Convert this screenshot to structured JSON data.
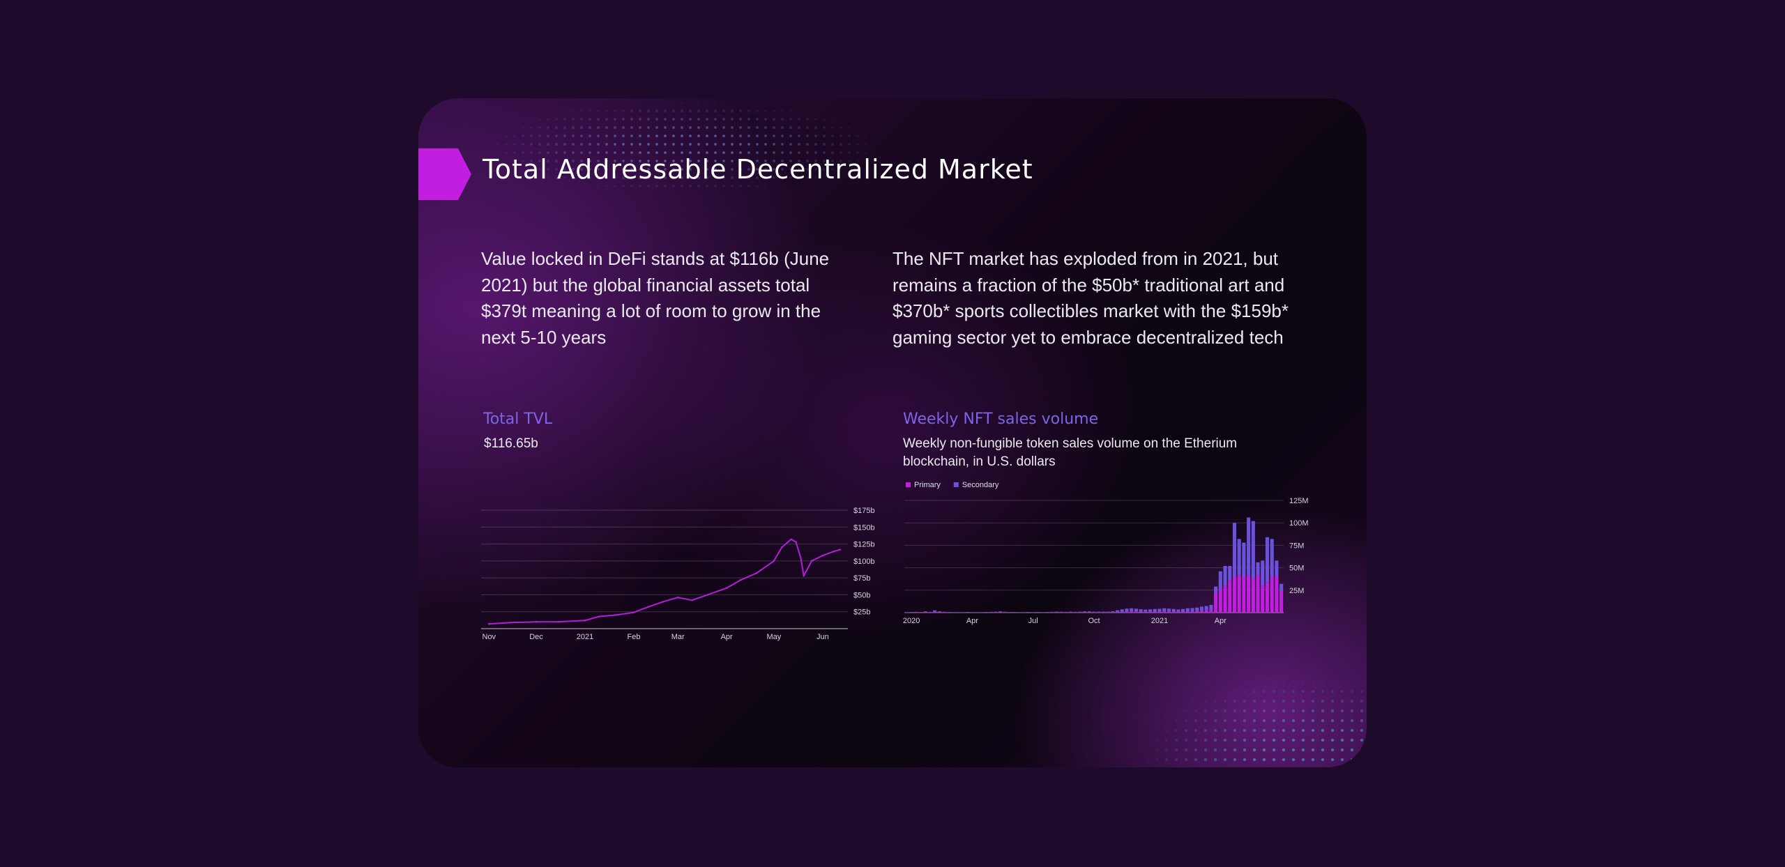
{
  "page": {
    "title": "Total Addressable Decentralized Market",
    "intro_left": "Value locked in DeFi stands at $116b (June 2021) but the global financial assets total $379t meaning a lot of room to grow in the next 5-10 years",
    "intro_right": "The NFT market has exploded from in 2021, but remains a fraction of the $50b* traditional art and $370b* sports collectibles market with the $159b* gaming sector yet to embrace decentralized tech",
    "accent_color": "#c21ee0",
    "chart_title_color": "#7b66e6"
  },
  "tvl": {
    "title": "Total TVL",
    "value": "$116.65b"
  },
  "nft": {
    "title": "Weekly NFT sales volume",
    "subtitle": "Weekly non-fungible token sales volume on the Etherium blockchain, in U.S. dollars"
  },
  "chart_data": [
    {
      "type": "line",
      "series": [
        {
          "color": "#b21fd6",
          "x": [
            "2020-11-01",
            "2020-11-15",
            "2020-12-01",
            "2020-12-15",
            "2021-01-01",
            "2021-01-10",
            "2021-01-20",
            "2021-02-01",
            "2021-02-10",
            "2021-02-20",
            "2021-03-01",
            "2021-03-10",
            "2021-03-20",
            "2021-04-01",
            "2021-04-10",
            "2021-04-20",
            "2021-05-01",
            "2021-05-06",
            "2021-05-12",
            "2021-05-15",
            "2021-05-18",
            "2021-05-20",
            "2021-05-25",
            "2021-06-01",
            "2021-06-08",
            "2021-06-12"
          ],
          "values": [
            7,
            9,
            10,
            10,
            12,
            18,
            20,
            24,
            32,
            40,
            46,
            42,
            50,
            60,
            72,
            82,
            100,
            120,
            132,
            128,
            105,
            78,
            100,
            108,
            114,
            116.65
          ]
        }
      ],
      "x_ticks": [
        "Nov",
        "Dec",
        "2021",
        "Feb",
        "Mar",
        "Apr",
        "May",
        "Jun"
      ],
      "x_tick_dates": [
        "2020-11-01",
        "2020-12-01",
        "2021-01-01",
        "2021-02-01",
        "2021-03-01",
        "2021-04-01",
        "2021-05-01",
        "2021-06-01"
      ],
      "xlim": [
        "2020-10-27",
        "2021-06-17"
      ],
      "y_ticks": [
        "$25b",
        "$50b",
        "$75b",
        "$100b",
        "$125b",
        "$150b",
        "$175b"
      ],
      "y_tick_values": [
        25,
        50,
        75,
        100,
        125,
        150,
        175
      ],
      "ylim": [
        0,
        175
      ],
      "ylabel_side": "right",
      "grid": true
    },
    {
      "type": "bar",
      "stacked": true,
      "legend_position": "top-left",
      "series": [
        {
          "name": "Primary",
          "color": "#c21ee0",
          "values": [
            0.3,
            0.4,
            0.5,
            0.4,
            0.8,
            0.5,
            1.5,
            0.8,
            0.6,
            0.4,
            0.3,
            0.3,
            0.3,
            0.4,
            0.3,
            0.3,
            0.3,
            0.4,
            0.5,
            0.6,
            0.8,
            0.6,
            0.4,
            0.4,
            0.3,
            0.3,
            0.4,
            0.3,
            0.4,
            0.3,
            0.4,
            0.5,
            0.6,
            0.6,
            0.5,
            0.6,
            0.5,
            0.6,
            0.8,
            0.8,
            0.6,
            0.6,
            0.6,
            0.6,
            0.6,
            0.8,
            1.0,
            1.2,
            1.4,
            1.4,
            1.2,
            1.0,
            1.0,
            1.2,
            1.2,
            1.4,
            1.4,
            1.2,
            1.0,
            1.2,
            1.6,
            1.6,
            1.8,
            2.4,
            2.4,
            3.0,
            22,
            26,
            30,
            36,
            40,
            42,
            40,
            42,
            38,
            42,
            30,
            34,
            40,
            40,
            24
          ]
        },
        {
          "name": "Secondary",
          "color": "#6a52dc",
          "values": [
            0.2,
            0.3,
            0.4,
            0.3,
            0.6,
            0.4,
            1.0,
            0.6,
            0.4,
            0.3,
            0.2,
            0.2,
            0.2,
            0.3,
            0.2,
            0.2,
            0.2,
            0.3,
            0.4,
            0.5,
            0.6,
            0.4,
            0.3,
            0.3,
            0.2,
            0.2,
            0.3,
            0.2,
            0.3,
            0.2,
            0.3,
            0.4,
            0.5,
            0.4,
            0.4,
            0.5,
            0.4,
            0.5,
            0.6,
            0.6,
            0.5,
            0.5,
            0.5,
            0.5,
            1.0,
            1.8,
            2.6,
            3.2,
            3.4,
            3.0,
            2.6,
            2.4,
            2.6,
            2.8,
            3.0,
            3.4,
            3.0,
            2.8,
            2.4,
            2.8,
            3.2,
            3.4,
            3.8,
            4.2,
            5.0,
            5.6,
            7,
            20,
            22,
            16,
            60,
            40,
            38,
            64,
            64,
            14,
            28,
            50,
            42,
            18,
            8
          ]
        }
      ],
      "x_ticks": [
        "2020",
        "Apr",
        "Jul",
        "Oct",
        "2021",
        "Apr"
      ],
      "x_tick_index": [
        1,
        14,
        27,
        40,
        54,
        67
      ],
      "y_ticks": [
        "25M",
        "50M",
        "75M",
        "100M",
        "125M"
      ],
      "y_tick_values": [
        25,
        50,
        75,
        100,
        125
      ],
      "ylim": [
        0,
        125
      ],
      "ylabel_side": "right",
      "grid": true
    }
  ]
}
